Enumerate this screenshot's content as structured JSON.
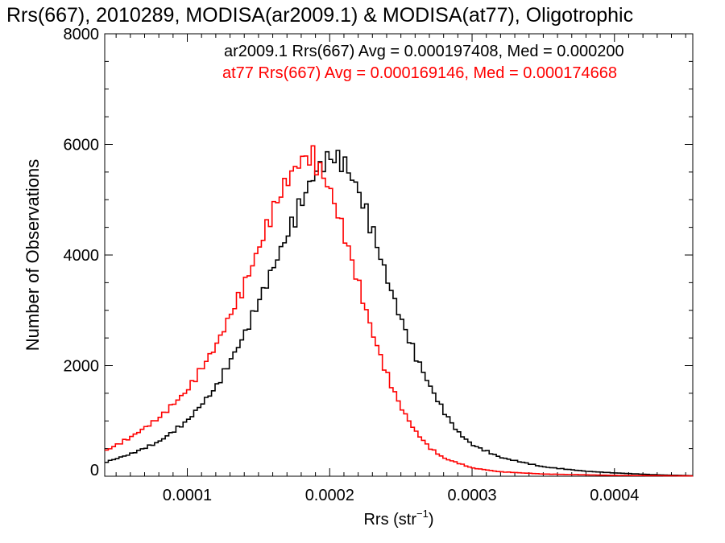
{
  "chart_data": {
    "type": "line",
    "title": "Rrs(667), 2010289, MODISA(ar2009.1) & MODISA(at77), Oligotrophic",
    "xlabel_main": "Rrs (str",
    "xlabel_sup": "−1",
    "xlabel_end": ")",
    "ylabel": "Number of Observations",
    "xlim": [
      4.2e-05,
      0.000455
    ],
    "ylim": [
      0,
      8000
    ],
    "x_ticks": [
      0.0001,
      0.0002,
      0.0003,
      0.0004
    ],
    "x_tick_labels": [
      "0.0001",
      "0.0002",
      "0.0003",
      "0.0004"
    ],
    "y_ticks": [
      0,
      2000,
      4000,
      6000,
      8000
    ],
    "y_tick_labels": [
      "0",
      "2000",
      "4000",
      "6000",
      "8000"
    ],
    "grid": false,
    "legend_position": "top-right",
    "step": true,
    "series": [
      {
        "label": "ar2009.1 Rrs(667) Avg = 0.000197408, Med = 0.000200",
        "color": "#000000",
        "points": [
          [
            4.2e-05,
            250
          ],
          [
            6e-05,
            400
          ],
          [
            8e-05,
            620
          ],
          [
            0.0001,
            1000
          ],
          [
            0.00012,
            1600
          ],
          [
            0.00014,
            2550
          ],
          [
            0.00016,
            3750
          ],
          [
            0.00018,
            4950
          ],
          [
            0.00019,
            5500
          ],
          [
            0.0002,
            5780
          ],
          [
            0.00021,
            5680
          ],
          [
            0.00022,
            5180
          ],
          [
            0.00023,
            4450
          ],
          [
            0.00024,
            3600
          ],
          [
            0.00025,
            2850
          ],
          [
            0.00026,
            2200
          ],
          [
            0.00027,
            1650
          ],
          [
            0.00028,
            1180
          ],
          [
            0.00029,
            800
          ],
          [
            0.0003,
            570
          ],
          [
            0.00032,
            340
          ],
          [
            0.00035,
            170
          ],
          [
            0.00038,
            90
          ],
          [
            0.0004,
            60
          ],
          [
            0.00043,
            25
          ],
          [
            0.000455,
            10
          ]
        ]
      },
      {
        "label": "at77 Rrs(667) Avg = 0.000169146, Med = 0.000174668",
        "color": "#ff0000",
        "points": [
          [
            4.2e-05,
            450
          ],
          [
            6e-05,
            700
          ],
          [
            8e-05,
            1050
          ],
          [
            0.0001,
            1550
          ],
          [
            0.00012,
            2350
          ],
          [
            0.00014,
            3450
          ],
          [
            0.00015,
            4100
          ],
          [
            0.00016,
            4800
          ],
          [
            0.00017,
            5350
          ],
          [
            0.00018,
            5720
          ],
          [
            0.000187,
            5790
          ],
          [
            0.00019,
            5700
          ],
          [
            0.0002,
            5200
          ],
          [
            0.00021,
            4400
          ],
          [
            0.00022,
            3500
          ],
          [
            0.00023,
            2600
          ],
          [
            0.00024,
            1850
          ],
          [
            0.00025,
            1250
          ],
          [
            0.00026,
            820
          ],
          [
            0.00027,
            520
          ],
          [
            0.00028,
            330
          ],
          [
            0.0003,
            150
          ],
          [
            0.00032,
            80
          ],
          [
            0.00035,
            40
          ],
          [
            0.0004,
            15
          ],
          [
            0.000455,
            5
          ]
        ]
      }
    ]
  }
}
